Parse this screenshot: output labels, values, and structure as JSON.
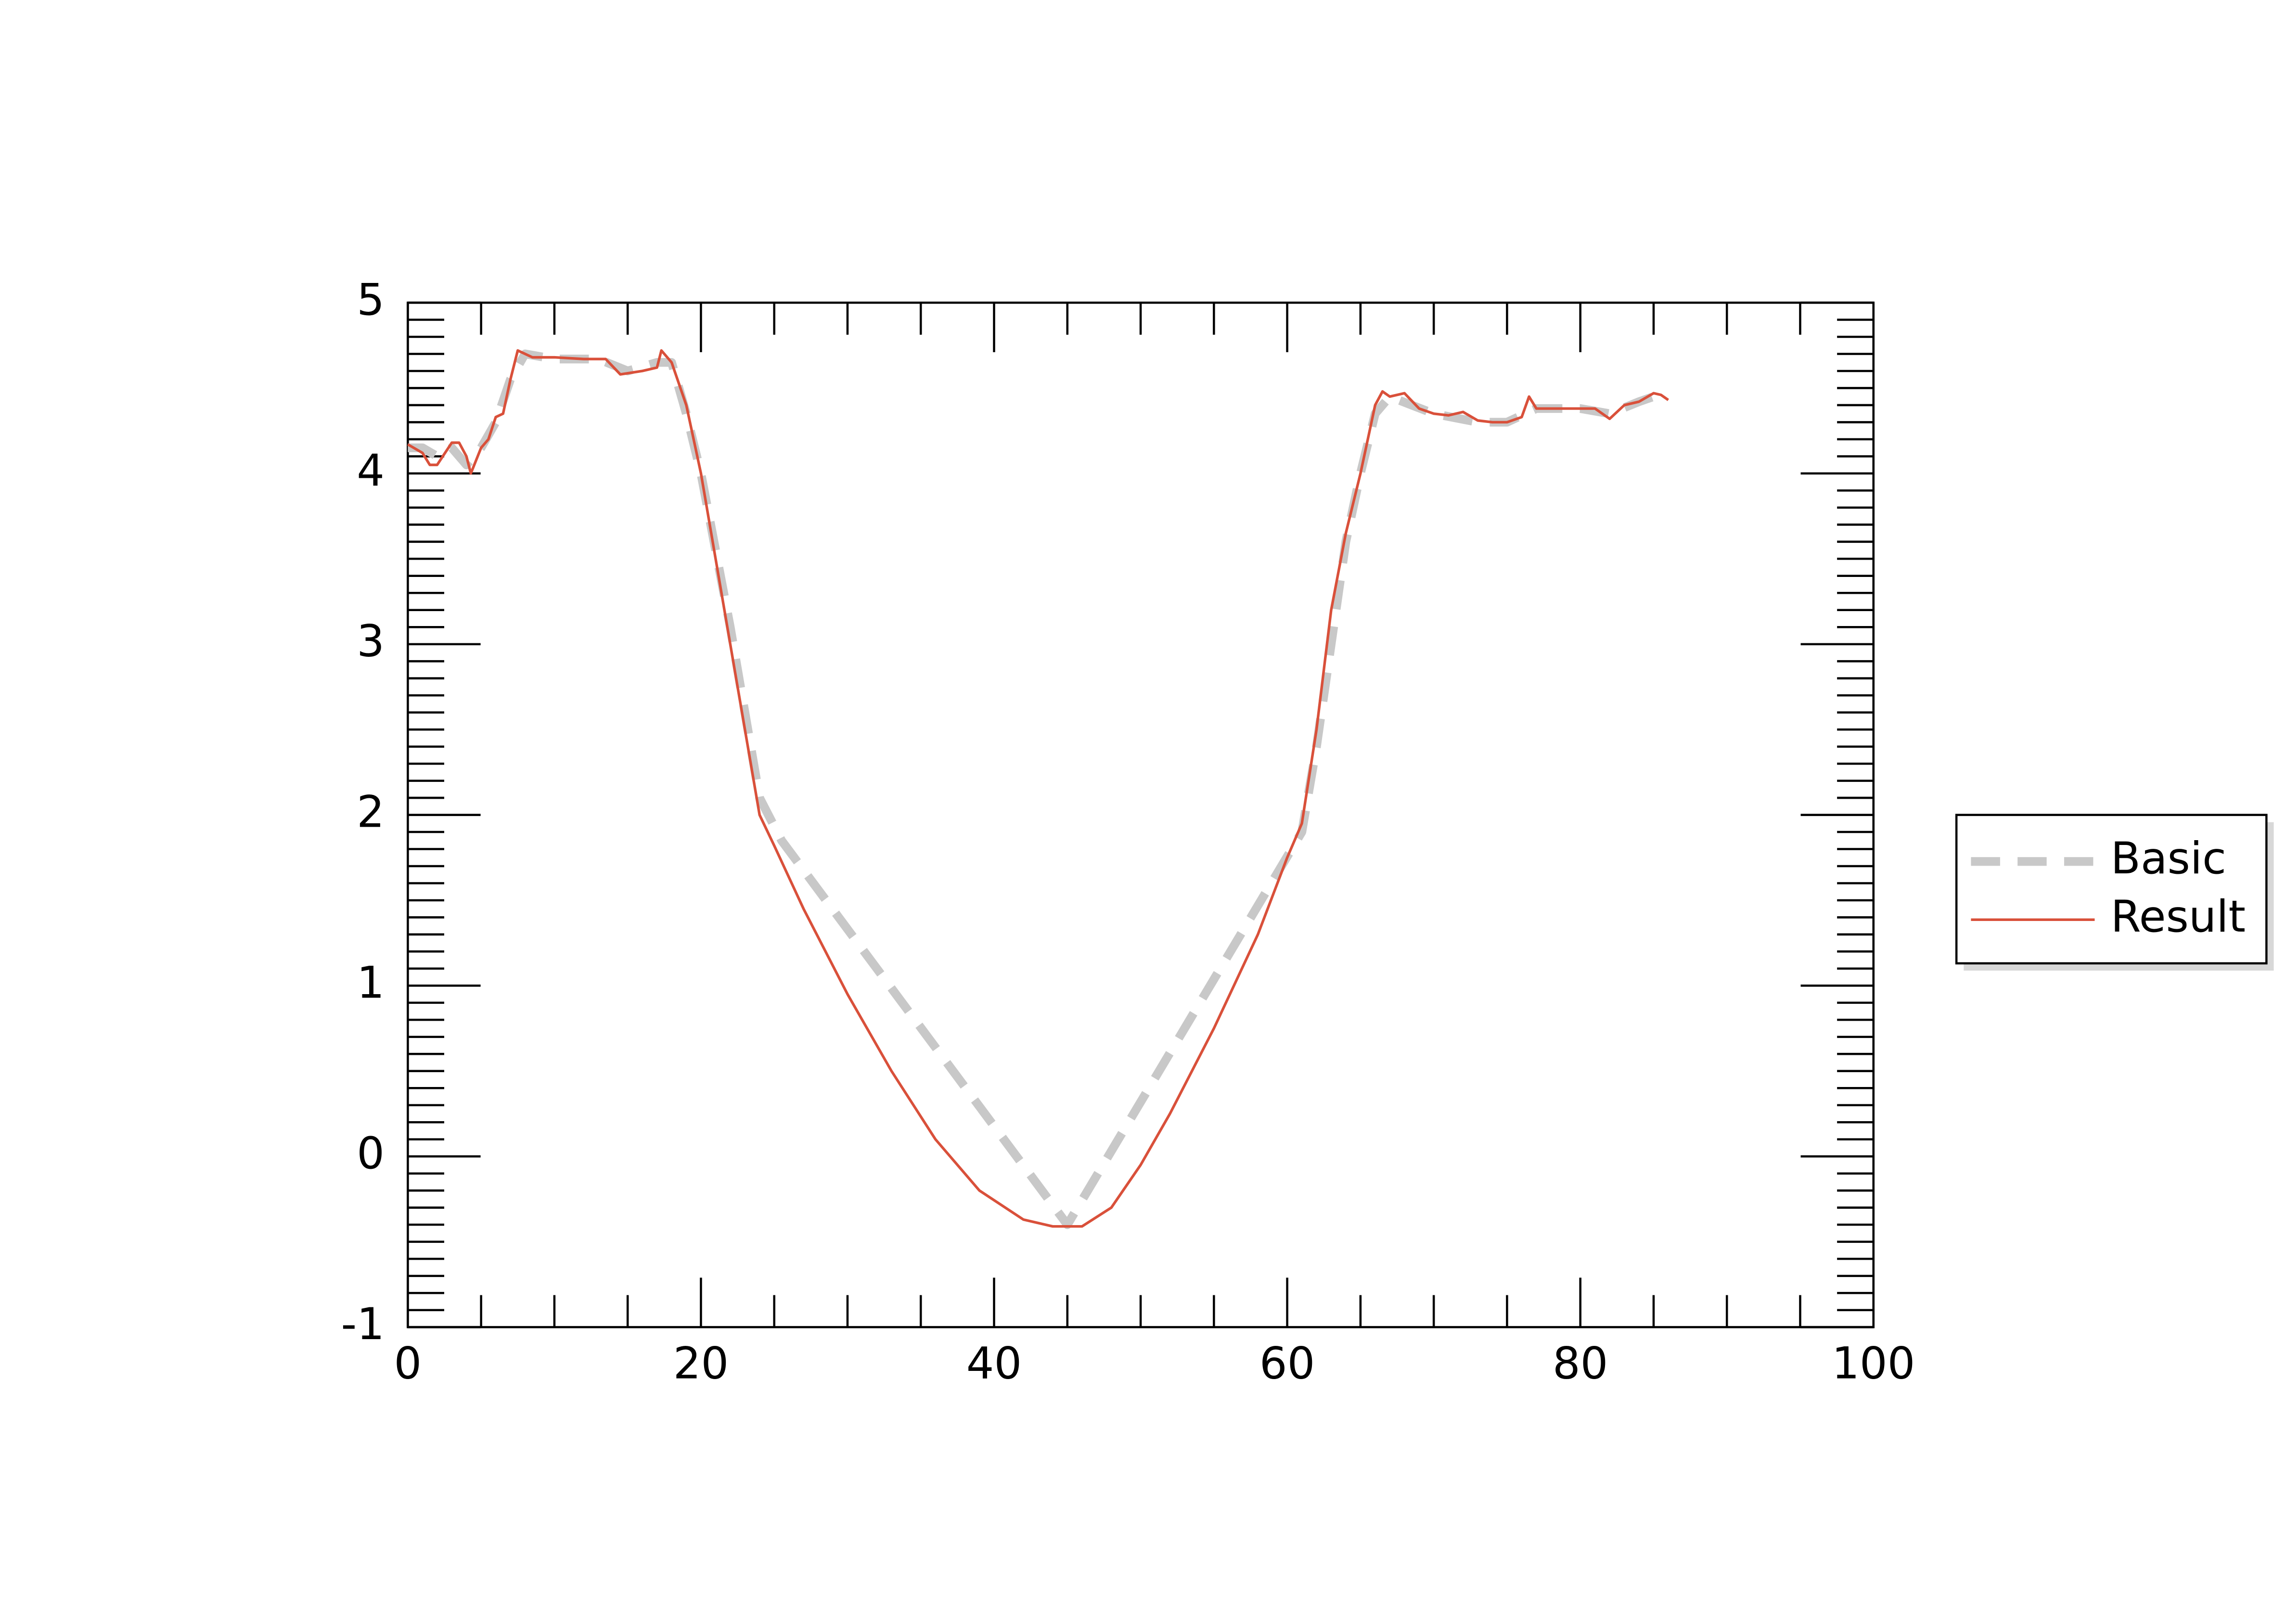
{
  "chart_data": {
    "type": "line",
    "xlim": [
      0,
      100
    ],
    "xticks": [
      0,
      20,
      40,
      60,
      80,
      100
    ],
    "x_minor_per_major": 4,
    "ylim": [
      -1,
      5
    ],
    "yticks": [
      -1,
      0,
      1,
      2,
      3,
      4,
      5
    ],
    "y_minor_per_major": 10,
    "grid": false,
    "legend": "right",
    "series": [
      {
        "name": "Basic",
        "color": "#c8c8c8",
        "dash": true,
        "x": [
          0,
          1,
          2,
          3,
          4,
          5,
          6,
          7,
          8,
          10,
          13,
          15,
          17,
          18,
          19,
          20,
          22,
          24,
          25.5,
          45,
          61,
          62,
          63,
          64,
          65,
          66,
          67,
          70,
          73,
          75,
          77,
          80,
          82,
          84,
          86
        ],
        "values": [
          4.15,
          4.15,
          4.1,
          4.15,
          4.05,
          4.15,
          4.3,
          4.55,
          4.7,
          4.67,
          4.67,
          4.6,
          4.65,
          4.65,
          4.35,
          4.0,
          3.1,
          2.1,
          1.85,
          -0.4,
          1.9,
          2.4,
          3.0,
          3.6,
          4.0,
          4.35,
          4.45,
          4.35,
          4.3,
          4.3,
          4.38,
          4.38,
          4.35,
          4.42,
          4.48
        ]
      },
      {
        "name": "Result",
        "color": "#d9503a",
        "dash": false,
        "x": [
          0,
          1,
          1.5,
          2,
          3,
          3.5,
          4,
          4.3,
          5,
          5.5,
          6,
          6.5,
          7,
          7.5,
          8.5,
          10,
          12,
          13.5,
          14.5,
          16,
          17,
          17.3,
          18,
          19,
          20,
          21,
          22,
          23,
          24,
          25,
          27,
          30,
          33,
          36,
          39,
          42,
          44,
          46,
          48,
          50,
          52,
          55,
          58,
          60,
          61,
          62,
          63,
          64,
          65,
          66,
          66.5,
          67,
          68,
          69,
          70,
          71,
          72,
          73,
          74,
          75,
          76,
          76.5,
          77,
          78,
          80,
          81,
          82,
          83,
          84,
          85,
          85.5,
          86
        ],
        "values": [
          4.17,
          4.12,
          4.05,
          4.05,
          4.18,
          4.18,
          4.1,
          4.0,
          4.15,
          4.2,
          4.33,
          4.35,
          4.55,
          4.72,
          4.68,
          4.68,
          4.67,
          4.67,
          4.58,
          4.6,
          4.62,
          4.72,
          4.65,
          4.4,
          4.0,
          3.5,
          3.0,
          2.5,
          2.0,
          1.82,
          1.45,
          0.95,
          0.5,
          0.1,
          -0.2,
          -0.37,
          -0.41,
          -0.41,
          -0.3,
          -0.05,
          0.25,
          0.75,
          1.3,
          1.75,
          1.95,
          2.5,
          3.2,
          3.65,
          4.0,
          4.4,
          4.48,
          4.45,
          4.47,
          4.38,
          4.35,
          4.34,
          4.36,
          4.31,
          4.3,
          4.3,
          4.33,
          4.45,
          4.38,
          4.38,
          4.38,
          4.38,
          4.32,
          4.4,
          4.42,
          4.47,
          4.46,
          4.43
        ]
      }
    ]
  }
}
